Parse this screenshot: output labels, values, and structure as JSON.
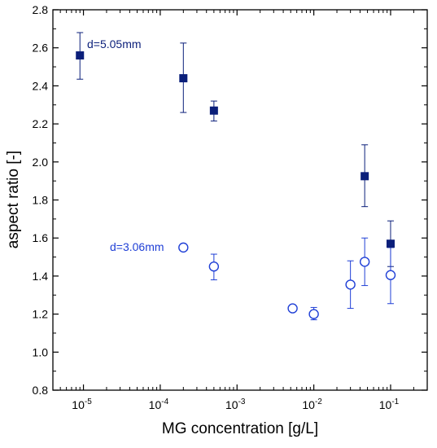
{
  "chart_data": {
    "type": "scatter",
    "xlabel": "MG concentration [g/L]",
    "ylabel": "aspect ratio [-]",
    "xscale": "log",
    "xlim": [
      4e-06,
      0.3
    ],
    "ylim": [
      0.8,
      2.8
    ],
    "y_ticks": [
      "0.8",
      "1.0",
      "1.2",
      "1.4",
      "1.6",
      "1.8",
      "2.0",
      "2.2",
      "2.4",
      "2.6",
      "2.8"
    ],
    "x_ticks": [
      {
        "value": 1e-05,
        "mantissa": "10",
        "exp": "-5"
      },
      {
        "value": 0.0001,
        "mantissa": "10",
        "exp": "-4"
      },
      {
        "value": 0.001,
        "mantissa": "10",
        "exp": "-3"
      },
      {
        "value": 0.01,
        "mantissa": "10",
        "exp": "-2"
      },
      {
        "value": 0.1,
        "mantissa": "10",
        "exp": "-1"
      }
    ],
    "grid": false,
    "series": [
      {
        "marker": "filled-square",
        "color": "#0b1f7a",
        "annotation": "d=5.05mm",
        "points": [
          {
            "x": 9e-06,
            "y": 2.56,
            "err_low": 2.435,
            "err_high": 2.68
          },
          {
            "x": 0.0002,
            "y": 2.44,
            "err_low": 2.26,
            "err_high": 2.625
          },
          {
            "x": 0.0005,
            "y": 2.27,
            "err_low": 2.215,
            "err_high": 2.32
          },
          {
            "x": 0.046,
            "y": 1.925,
            "err_low": 1.765,
            "err_high": 2.09
          },
          {
            "x": 0.1,
            "y": 1.57,
            "err_low": 1.45,
            "err_high": 1.69
          }
        ]
      },
      {
        "marker": "open-circle",
        "color": "#1f3fd6",
        "annotation": "d=3.06mm",
        "points": [
          {
            "x": 0.0002,
            "y": 1.55,
            "err_low": 1.55,
            "err_high": 1.55
          },
          {
            "x": 0.0005,
            "y": 1.45,
            "err_low": 1.38,
            "err_high": 1.515
          },
          {
            "x": 0.0053,
            "y": 1.23,
            "err_low": 1.215,
            "err_high": 1.245
          },
          {
            "x": 0.01,
            "y": 1.2,
            "err_low": 1.17,
            "err_high": 1.235
          },
          {
            "x": 0.03,
            "y": 1.355,
            "err_low": 1.23,
            "err_high": 1.48
          },
          {
            "x": 0.046,
            "y": 1.475,
            "err_low": 1.35,
            "err_high": 1.6
          },
          {
            "x": 0.1,
            "y": 1.405,
            "err_low": 1.255,
            "err_high": 1.55
          }
        ]
      }
    ]
  }
}
